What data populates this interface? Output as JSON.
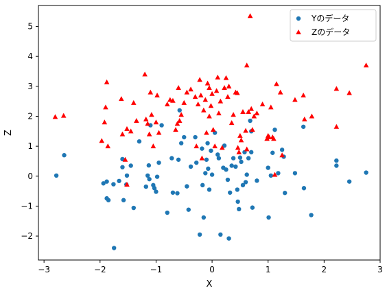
{
  "chart_data": {
    "type": "scatter",
    "title": "",
    "xlabel": "X",
    "ylabel": "Z",
    "xlim": [
      -3.1,
      3.0
    ],
    "ylim": [
      -2.8,
      5.7
    ],
    "xticks": [
      -3,
      -2,
      -1,
      0,
      1,
      2,
      3
    ],
    "yticks": [
      -2,
      -1,
      0,
      1,
      2,
      3,
      4,
      5
    ],
    "xtick_labels": [
      "−3",
      "−2",
      "−1",
      "0",
      "1",
      "2",
      "3"
    ],
    "ytick_labels": [
      "−2",
      "−1",
      "0",
      "1",
      "2",
      "3",
      "4",
      "5"
    ],
    "grid": false,
    "legend_position": "top-right",
    "series": [
      {
        "name": "Yのデータ",
        "marker": "circle",
        "color": "#1f77b4",
        "points": [
          [
            -2.78,
            0.02
          ],
          [
            -2.64,
            0.7
          ],
          [
            -1.94,
            -0.24
          ],
          [
            -1.88,
            -0.18
          ],
          [
            -1.88,
            -0.74
          ],
          [
            -1.85,
            -0.8
          ],
          [
            -1.76,
            -0.27
          ],
          [
            -1.75,
            -2.4
          ],
          [
            -1.66,
            -0.16
          ],
          [
            -1.6,
            0.57
          ],
          [
            -1.6,
            0.3
          ],
          [
            -1.58,
            -0.8
          ],
          [
            -1.53,
            -0.28
          ],
          [
            -1.52,
            0.02
          ],
          [
            -1.45,
            0.35
          ],
          [
            -1.4,
            -1.06
          ],
          [
            -1.3,
            1.16
          ],
          [
            -1.18,
            -0.35
          ],
          [
            -1.15,
            0.02
          ],
          [
            -1.13,
            0.36
          ],
          [
            -1.12,
            -0.1
          ],
          [
            -1.1,
            1.7
          ],
          [
            -1.05,
            -0.3
          ],
          [
            -1.03,
            -0.4
          ],
          [
            -1.0,
            -0.52
          ],
          [
            -0.98,
            -0.02
          ],
          [
            -0.95,
            0.45
          ],
          [
            -0.9,
            1.7
          ],
          [
            -0.8,
            -1.22
          ],
          [
            -0.72,
            0.6
          ],
          [
            -0.7,
            -0.55
          ],
          [
            -0.62,
            -0.57
          ],
          [
            -0.6,
            0.55
          ],
          [
            -0.58,
            2.2
          ],
          [
            -0.55,
            1.1
          ],
          [
            -0.5,
            1.3
          ],
          [
            -0.45,
            -0.34
          ],
          [
            -0.42,
            -1.12
          ],
          [
            -0.38,
            0.32
          ],
          [
            -0.3,
            1.3
          ],
          [
            -0.28,
            0.45
          ],
          [
            -0.22,
            -1.95
          ],
          [
            -0.18,
            0.92
          ],
          [
            -0.17,
            -0.3
          ],
          [
            -0.15,
            -1.38
          ],
          [
            -0.12,
            0.1
          ],
          [
            -0.1,
            0.55
          ],
          [
            -0.08,
            1.1
          ],
          [
            -0.07,
            0.25
          ],
          [
            -0.05,
            -0.45
          ],
          [
            -0.02,
            0.85
          ],
          [
            0.0,
            0.05
          ],
          [
            0.05,
            1.45
          ],
          [
            0.1,
            0.72
          ],
          [
            0.12,
            0.6
          ],
          [
            0.15,
            -1.95
          ],
          [
            0.2,
            0.28
          ],
          [
            0.22,
            1.02
          ],
          [
            0.25,
            0.22
          ],
          [
            0.28,
            -0.12
          ],
          [
            0.3,
            -2.08
          ],
          [
            0.32,
            -0.55
          ],
          [
            0.35,
            0.35
          ],
          [
            0.38,
            0.6
          ],
          [
            0.42,
            0.32
          ],
          [
            0.45,
            -0.45
          ],
          [
            0.46,
            -0.85
          ],
          [
            0.48,
            -1.1
          ],
          [
            0.5,
            0.62
          ],
          [
            0.52,
            0.48
          ],
          [
            0.55,
            -0.3
          ],
          [
            0.58,
            0.8
          ],
          [
            0.6,
            -0.2
          ],
          [
            0.62,
            0.05
          ],
          [
            0.65,
            0.6
          ],
          [
            0.68,
            1.85
          ],
          [
            0.7,
            1.5
          ],
          [
            0.7,
            0.8
          ],
          [
            0.72,
            -1.05
          ],
          [
            0.8,
            -0.15
          ],
          [
            1.0,
            0.28
          ],
          [
            1.01,
            -1.38
          ],
          [
            1.05,
            0.02
          ],
          [
            1.08,
            0.78
          ],
          [
            1.12,
            1.55
          ],
          [
            1.18,
            0.1
          ],
          [
            1.25,
            0.88
          ],
          [
            1.28,
            0.65
          ],
          [
            1.3,
            -0.56
          ],
          [
            1.48,
            0.1
          ],
          [
            1.63,
            1.65
          ],
          [
            1.64,
            -0.4
          ],
          [
            1.77,
            -1.3
          ],
          [
            2.22,
            0.52
          ],
          [
            2.22,
            0.35
          ],
          [
            2.45,
            -0.18
          ],
          [
            2.75,
            0.12
          ]
        ]
      },
      {
        "name": "Zのデータ",
        "marker": "triangle",
        "color": "#ff0000",
        "points": [
          [
            -2.8,
            1.98
          ],
          [
            -2.65,
            2.02
          ],
          [
            -1.97,
            1.18
          ],
          [
            -1.92,
            1.8
          ],
          [
            -1.9,
            2.3
          ],
          [
            -1.88,
            3.14
          ],
          [
            -1.86,
            1.0
          ],
          [
            -1.62,
            2.58
          ],
          [
            -1.6,
            1.4
          ],
          [
            -1.55,
            0.55
          ],
          [
            -1.52,
            1.58
          ],
          [
            -1.52,
            -0.28
          ],
          [
            -1.45,
            1.5
          ],
          [
            -1.4,
            2.45
          ],
          [
            -1.35,
            1.85
          ],
          [
            -1.2,
            3.4
          ],
          [
            -1.18,
            1.9
          ],
          [
            -1.15,
            1.75
          ],
          [
            -1.12,
            1.4
          ],
          [
            -1.1,
            2.8
          ],
          [
            -1.08,
            2.05
          ],
          [
            -1.05,
            1.0
          ],
          [
            -1.0,
            1.8
          ],
          [
            -0.98,
            2.7
          ],
          [
            -0.95,
            1.45
          ],
          [
            -0.8,
            2.4
          ],
          [
            -0.75,
            2.55
          ],
          [
            -0.7,
            2.52
          ],
          [
            -0.65,
            1.55
          ],
          [
            -0.62,
            1.75
          ],
          [
            -0.6,
            2.95
          ],
          [
            -0.58,
            1.85
          ],
          [
            -0.55,
            2.05
          ],
          [
            -0.5,
            2.45
          ],
          [
            -0.45,
            2.8
          ],
          [
            -0.38,
            2.9
          ],
          [
            -0.3,
            2.65
          ],
          [
            -0.28,
            1.0
          ],
          [
            -0.25,
            2.4
          ],
          [
            -0.22,
            3.22
          ],
          [
            -0.2,
            2.7
          ],
          [
            -0.18,
            0.6
          ],
          [
            -0.15,
            2.2
          ],
          [
            -0.12,
            2.55
          ],
          [
            -0.1,
            1.45
          ],
          [
            -0.08,
            3.1
          ],
          [
            -0.05,
            2.95
          ],
          [
            -0.05,
            2.0
          ],
          [
            -0.02,
            2.35
          ],
          [
            0.0,
            2.75
          ],
          [
            0.02,
            1.55
          ],
          [
            0.05,
            1.0
          ],
          [
            0.08,
            2.85
          ],
          [
            0.1,
            3.3
          ],
          [
            0.12,
            2.1
          ],
          [
            0.15,
            2.5
          ],
          [
            0.18,
            0.95
          ],
          [
            0.22,
            2.95
          ],
          [
            0.25,
            3.28
          ],
          [
            0.28,
            2.65
          ],
          [
            0.3,
            3.0
          ],
          [
            0.35,
            1.78
          ],
          [
            0.38,
            2.05
          ],
          [
            0.42,
            2.8
          ],
          [
            0.45,
            2.78
          ],
          [
            0.46,
            0.95
          ],
          [
            0.48,
            0.8
          ],
          [
            0.5,
            1.35
          ],
          [
            0.52,
            1.2
          ],
          [
            0.55,
            2.15
          ],
          [
            0.6,
            1.52
          ],
          [
            0.62,
            0.9
          ],
          [
            0.62,
            3.7
          ],
          [
            0.65,
            2.15
          ],
          [
            0.68,
            5.35
          ],
          [
            0.7,
            2.25
          ],
          [
            0.72,
            1.55
          ],
          [
            0.75,
            2.0
          ],
          [
            0.8,
            2.1
          ],
          [
            0.9,
            2.4
          ],
          [
            0.98,
            1.25
          ],
          [
            1.0,
            1.35
          ],
          [
            1.02,
            1.3
          ],
          [
            1.05,
            2.3
          ],
          [
            1.08,
            1.3
          ],
          [
            1.1,
            1.25
          ],
          [
            1.12,
            0.05
          ],
          [
            1.15,
            3.08
          ],
          [
            1.22,
            2.8
          ],
          [
            1.25,
            0.7
          ],
          [
            1.48,
            2.55
          ],
          [
            1.63,
            2.7
          ],
          [
            1.65,
            1.9
          ],
          [
            1.78,
            2.0
          ],
          [
            2.22,
            2.92
          ],
          [
            2.22,
            1.65
          ],
          [
            2.45,
            2.78
          ],
          [
            2.75,
            3.7
          ]
        ]
      }
    ]
  }
}
